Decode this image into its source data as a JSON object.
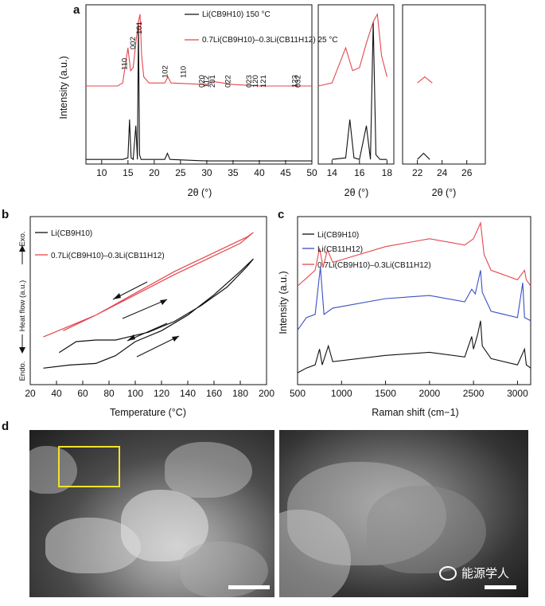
{
  "panels": {
    "a": {
      "letter": "a",
      "ylabel": "Intensity (a.u.)",
      "xlabel": "2θ (°)",
      "legend": [
        {
          "label": "Li(CB9H10) 150 °C",
          "color": "#111111"
        },
        {
          "label": "0.7Li(CB9H10)–0.3Li(CB11H12) 25 °C",
          "color": "#e4474f"
        }
      ],
      "subplots": [
        {
          "xlim": [
            7,
            50
          ],
          "ticks": [
            "10",
            "15",
            "20",
            "25",
            "30",
            "35",
            "40",
            "45",
            "50"
          ]
        },
        {
          "xlim": [
            13,
            18.5
          ],
          "ticks": [
            "14",
            "16",
            "18"
          ]
        },
        {
          "xlim": [
            20.8,
            27.5
          ],
          "ticks": [
            "22",
            "24",
            "26"
          ]
        }
      ],
      "peak_labels": [
        "110",
        "002",
        "101",
        "102",
        "110",
        "020",
        "112",
        "201",
        "022",
        "023",
        "120",
        "121",
        "123",
        "032"
      ]
    },
    "b": {
      "letter": "b",
      "ylabel": "Heat flow (a.u.)",
      "exo": "Exo.",
      "endo": "Endo.",
      "xlabel": "Temperature (°C)",
      "ticks": [
        "20",
        "40",
        "60",
        "80",
        "100",
        "120",
        "140",
        "160",
        "180",
        "200"
      ],
      "legend": [
        {
          "label": "Li(CB9H10)",
          "color": "#111111"
        },
        {
          "label": "0.7Li(CB9H10)–0.3Li(CB11H12)",
          "color": "#e4474f"
        }
      ]
    },
    "c": {
      "letter": "c",
      "ylabel": "Intensity (a.u.)",
      "xlabel": "Raman shift (cm−1)",
      "ticks": [
        "500",
        "1000",
        "1500",
        "2000",
        "2500",
        "3000"
      ],
      "legend": [
        {
          "label": "Li(CB9H10)",
          "color": "#111111"
        },
        {
          "label": "Li(CB11H12)",
          "color": "#3a4fc4"
        },
        {
          "label": "0.7Li(CB9H10)–0.3Li(CB11H12)",
          "color": "#e4474f"
        }
      ]
    },
    "d": {
      "letter": "d",
      "watermark": "能源学人"
    }
  },
  "chart_data": [
    {
      "type": "line",
      "title": "",
      "xlabel": "2θ (°)",
      "ylabel": "Intensity (a.u.)",
      "xlim": [
        7,
        50
      ],
      "series": [
        {
          "name": "Li(CB9H10) 150 °C",
          "x": [
            7,
            14,
            15,
            15.3,
            15.6,
            16,
            16.5,
            16.8,
            17,
            17.2,
            17.5,
            18,
            22,
            22.5,
            23,
            30,
            40,
            50
          ],
          "y": [
            0.02,
            0.02,
            0.03,
            0.28,
            0.03,
            0.02,
            0.24,
            0.02,
            0.92,
            0.05,
            0.02,
            0.02,
            0.02,
            0.06,
            0.02,
            0.01,
            0.01,
            0.01
          ]
        },
        {
          "name": "0.7Li(CB9H10)–0.3Li(CB11H12) 25 °C",
          "x": [
            7,
            13,
            14,
            15,
            15.5,
            16,
            16.5,
            17,
            17.3,
            17.6,
            18,
            19,
            22,
            22.6,
            23.2,
            30,
            31,
            35,
            40,
            45,
            50
          ],
          "y": [
            0.5,
            0.5,
            0.52,
            0.75,
            0.6,
            0.62,
            0.78,
            0.92,
            0.97,
            0.7,
            0.56,
            0.52,
            0.52,
            0.56,
            0.52,
            0.51,
            0.53,
            0.51,
            0.5,
            0.5,
            0.5
          ]
        }
      ]
    },
    {
      "type": "line",
      "title": "",
      "xlabel": "Temperature (°C)",
      "ylabel": "Heat flow (a.u.)",
      "xlim": [
        20,
        200
      ],
      "series": [
        {
          "name": "Li(CB9H10)",
          "x": [
            30,
            50,
            70,
            85,
            100,
            120,
            140,
            160,
            180,
            190,
            185,
            170,
            150,
            130,
            110,
            95,
            85,
            70,
            55,
            42
          ],
          "y": [
            0.08,
            0.1,
            0.11,
            0.16,
            0.25,
            0.32,
            0.42,
            0.55,
            0.7,
            0.78,
            0.73,
            0.6,
            0.48,
            0.38,
            0.31,
            0.28,
            0.26,
            0.26,
            0.25,
            0.18
          ]
        },
        {
          "name": "0.7Li(CB9H10)–0.3Li(CB11H12)",
          "x": [
            30,
            50,
            70,
            100,
            130,
            160,
            180,
            190,
            185,
            160,
            130,
            100,
            70,
            45
          ],
          "y": [
            0.28,
            0.35,
            0.42,
            0.55,
            0.68,
            0.8,
            0.88,
            0.95,
            0.92,
            0.82,
            0.7,
            0.56,
            0.42,
            0.32
          ]
        }
      ]
    },
    {
      "type": "line",
      "title": "",
      "xlabel": "Raman shift (cm−1)",
      "ylabel": "Intensity (a.u.)",
      "xlim": [
        500,
        3150
      ],
      "series": [
        {
          "name": "Li(CB9H10)",
          "x": [
            500,
            600,
            700,
            750,
            780,
            850,
            900,
            1500,
            2000,
            2400,
            2480,
            2500,
            2550,
            2580,
            2600,
            2700,
            3000,
            3080,
            3100,
            3150
          ],
          "y": [
            0.05,
            0.08,
            0.1,
            0.2,
            0.1,
            0.22,
            0.12,
            0.16,
            0.18,
            0.15,
            0.28,
            0.2,
            0.3,
            0.38,
            0.22,
            0.14,
            0.1,
            0.2,
            0.1,
            0.08
          ]
        },
        {
          "name": "Li(CB11H12)",
          "x": [
            500,
            600,
            700,
            760,
            800,
            900,
            1500,
            2000,
            2400,
            2480,
            2520,
            2580,
            2600,
            2700,
            3000,
            3060,
            3080,
            3150
          ],
          "y": [
            0.32,
            0.4,
            0.42,
            0.72,
            0.42,
            0.46,
            0.52,
            0.54,
            0.5,
            0.58,
            0.55,
            0.7,
            0.56,
            0.44,
            0.4,
            0.62,
            0.4,
            0.38
          ]
        },
        {
          "name": "0.7Li(CB9H10)–0.3Li(CB11H12)",
          "x": [
            500,
            600,
            700,
            750,
            790,
            840,
            900,
            1500,
            2000,
            2400,
            2500,
            2580,
            2620,
            2700,
            3000,
            3080,
            3100,
            3150
          ],
          "y": [
            0.6,
            0.65,
            0.7,
            0.84,
            0.72,
            0.83,
            0.75,
            0.85,
            0.9,
            0.86,
            0.9,
            1.0,
            0.8,
            0.7,
            0.64,
            0.7,
            0.64,
            0.6
          ]
        }
      ]
    }
  ]
}
